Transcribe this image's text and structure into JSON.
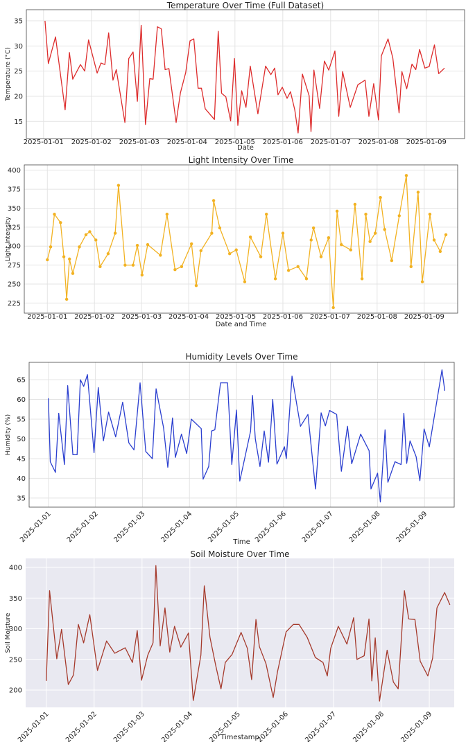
{
  "chart_data": [
    {
      "type": "line",
      "title": "Temperature Over Time (Full Dataset)",
      "xlabel": "Date",
      "ylabel": "Temperature (°C)",
      "color": "#dd2c2c",
      "grid": true,
      "marker": false,
      "x": [
        0.03,
        0.1,
        0.25,
        0.45,
        0.54,
        0.61,
        0.77,
        0.86,
        0.94,
        1.12,
        1.2,
        1.28,
        1.36,
        1.45,
        1.52,
        1.7,
        1.78,
        1.87,
        1.96,
        2.04,
        2.13,
        2.22,
        2.29,
        2.38,
        2.46,
        2.54,
        2.62,
        2.77,
        2.86,
        2.97,
        3.06,
        3.14,
        3.23,
        3.3,
        3.38,
        3.57,
        3.65,
        3.72,
        3.81,
        3.91,
        3.99,
        4.06,
        4.14,
        4.23,
        4.32,
        4.48,
        4.64,
        4.75,
        4.83,
        4.9,
        4.99,
        5.09,
        5.16,
        5.25,
        5.32,
        5.41,
        5.55,
        5.59,
        5.65,
        5.77,
        5.87,
        5.96,
        6.09,
        6.17,
        6.25,
        6.41,
        6.57,
        6.72,
        6.8,
        6.9,
        7.0,
        7.06,
        7.2,
        7.3,
        7.43,
        7.49,
        7.59,
        7.7,
        7.78,
        7.86,
        7.97,
        8.06,
        8.17,
        8.26,
        8.38
      ],
      "values": [
        35,
        26.5,
        31.8,
        17.3,
        28.7,
        23.4,
        26.3,
        25,
        31.2,
        24.6,
        26.6,
        26.3,
        32.6,
        23.2,
        25.3,
        14.8,
        27.5,
        28.8,
        19,
        34.1,
        14.4,
        23.5,
        23.4,
        33.8,
        33.4,
        25.3,
        25.5,
        14.8,
        20.7,
        24.7,
        31,
        31.4,
        21.6,
        21.6,
        17.5,
        15.4,
        32.9,
        20.6,
        19.9,
        15.1,
        27.5,
        14.2,
        21.1,
        17.8,
        26,
        16.5,
        26,
        24.3,
        25.6,
        20.3,
        21.8,
        19.6,
        20.9,
        17.3,
        12.7,
        24.4,
        20.1,
        13,
        25.2,
        17.6,
        27,
        25.2,
        29,
        16,
        24.9,
        17.8,
        22.3,
        23.2,
        16,
        22.5,
        15.3,
        28,
        31.4,
        27.6,
        16.7,
        24.9,
        21.5,
        26.4,
        25.3,
        29.3,
        25.6,
        25.9,
        30.2,
        24.5,
        25.6
      ],
      "xlim": [
        -0.36,
        8.8
      ],
      "ylim": [
        11.6,
        37.2
      ],
      "yticks": [
        15,
        20,
        25,
        30,
        35
      ],
      "xticks": [
        {
          "value": 0,
          "label": "2025-01-01"
        },
        {
          "value": 1,
          "label": "2025-01-02"
        },
        {
          "value": 2,
          "label": "2025-01-03"
        },
        {
          "value": 3,
          "label": "2025-01-04"
        },
        {
          "value": 4,
          "label": "2025-01-05"
        },
        {
          "value": 5,
          "label": "2025-01-06"
        },
        {
          "value": 6,
          "label": "2025-01-07"
        },
        {
          "value": 7,
          "label": "2025-01-08"
        },
        {
          "value": 8,
          "label": "2025-01-09"
        }
      ]
    },
    {
      "type": "line",
      "title": "Light Intensity Over Time",
      "xlabel": "Date and Time",
      "ylabel": "Light Intensity",
      "color": "#f2b222",
      "grid": true,
      "marker": true,
      "x": [
        0,
        0.07,
        0.15,
        0.28,
        0.35,
        0.41,
        0.47,
        0.54,
        0.68,
        0.82,
        0.9,
        1.03,
        1.12,
        1.29,
        1.44,
        1.51,
        1.65,
        1.82,
        1.91,
        2.01,
        2.13,
        2.4,
        2.54,
        2.71,
        2.85,
        3.06,
        3.16,
        3.26,
        3.49,
        3.53,
        3.66,
        3.87,
        4.01,
        4.19,
        4.31,
        4.53,
        4.65,
        4.84,
        5.0,
        5.12,
        5.32,
        5.5,
        5.6,
        5.65,
        5.81,
        5.97,
        6.07,
        6.15,
        6.24,
        6.44,
        6.53,
        6.68,
        6.76,
        6.85,
        6.96,
        7.07,
        7.16,
        7.31,
        7.47,
        7.62,
        7.72,
        7.87,
        7.96,
        8.12,
        8.21,
        8.34,
        8.46
      ],
      "values": [
        282,
        299,
        342,
        331,
        286,
        230,
        283,
        264,
        299,
        315,
        319,
        308,
        273,
        290,
        317,
        380,
        275,
        275,
        301,
        262,
        302,
        288,
        342,
        269,
        273,
        303,
        248,
        294,
        317,
        360,
        324,
        290,
        295,
        253,
        312,
        286,
        342,
        257,
        317,
        268,
        273,
        257,
        308,
        324,
        286,
        311,
        219,
        346,
        302,
        295,
        355,
        257,
        342,
        306,
        317,
        364,
        322,
        281,
        340,
        393,
        273,
        371,
        253,
        342,
        308,
        293,
        315
      ],
      "xlim": [
        -0.49,
        8.71
      ],
      "ylim": [
        211.7,
        407
      ],
      "yticks": [
        225,
        250,
        275,
        300,
        325,
        350,
        375,
        400
      ],
      "xticks": [
        {
          "value": 0,
          "label": "2025-01-01"
        },
        {
          "value": 1,
          "label": "2025-01-02"
        },
        {
          "value": 2,
          "label": "2025-01-03"
        },
        {
          "value": 3,
          "label": "2025-01-04"
        },
        {
          "value": 4,
          "label": "2025-01-05"
        },
        {
          "value": 5,
          "label": "2025-01-06"
        },
        {
          "value": 6,
          "label": "2025-01-07"
        },
        {
          "value": 7,
          "label": "2025-01-08"
        },
        {
          "value": 8,
          "label": "2025-01-09"
        }
      ]
    },
    {
      "type": "line",
      "title": "Humidity Levels Over Time",
      "xlabel": "Time",
      "ylabel": "Humidity (%)",
      "color": "#2b3fcf",
      "grid": true,
      "marker": false,
      "x": [
        0,
        0.04,
        0.15,
        0.22,
        0.34,
        0.41,
        0.52,
        0.61,
        0.68,
        0.75,
        0.83,
        0.97,
        1.06,
        1.17,
        1.28,
        1.43,
        1.58,
        1.71,
        1.82,
        1.95,
        2.07,
        2.21,
        2.29,
        2.45,
        2.54,
        2.64,
        2.7,
        2.83,
        2.94,
        3.04,
        3.25,
        3.29,
        3.41,
        3.47,
        3.54,
        3.66,
        3.81,
        3.9,
        4.0,
        4.07,
        4.3,
        4.34,
        4.4,
        4.5,
        4.59,
        4.68,
        4.77,
        4.86,
        5.02,
        5.06,
        5.18,
        5.36,
        5.52,
        5.68,
        5.8,
        5.89,
        5.98,
        6.13,
        6.23,
        6.36,
        6.45,
        6.64,
        6.82,
        6.86,
        7.0,
        7.06,
        7.16,
        7.22,
        7.37,
        7.5,
        7.56,
        7.62,
        7.69,
        7.82,
        7.9,
        7.99,
        8.1,
        8.37,
        8.43
      ],
      "values": [
        60.3,
        44.2,
        41.5,
        56.5,
        43.5,
        63.5,
        46,
        46,
        65,
        63.3,
        66.3,
        46.5,
        63,
        49.5,
        56.8,
        50.5,
        59.3,
        49,
        47.2,
        64.2,
        46.8,
        45,
        62.7,
        52.8,
        42.8,
        55.3,
        45.3,
        51.2,
        46.3,
        55,
        52.6,
        39.8,
        43,
        52,
        52.3,
        64.2,
        64.2,
        43.5,
        57.3,
        39.3,
        52,
        61,
        50,
        43,
        52,
        44.1,
        60,
        43.6,
        48,
        45,
        65.9,
        53.2,
        56.2,
        37.3,
        56.6,
        53.3,
        57.2,
        56.2,
        41.8,
        53.2,
        43.7,
        51.2,
        47,
        37.3,
        41.3,
        34,
        52.3,
        39,
        44.2,
        43.5,
        56.5,
        43.8,
        49.5,
        45.5,
        39.4,
        52.5,
        48,
        67.5,
        62.2
      ],
      "xlim": [
        -0.41,
        8.63
      ],
      "ylim": [
        32.7,
        69.4
      ],
      "yticks": [
        35,
        40,
        45,
        50,
        55,
        60,
        65
      ],
      "xticks": [
        {
          "value": 0,
          "label": "2025-01-01"
        },
        {
          "value": 1,
          "label": "2025-01-02"
        },
        {
          "value": 2,
          "label": "2025-01-03"
        },
        {
          "value": 3,
          "label": "2025-01-04"
        },
        {
          "value": 4,
          "label": "2025-01-05"
        },
        {
          "value": 5,
          "label": "2025-01-06"
        },
        {
          "value": 6,
          "label": "2025-01-07"
        },
        {
          "value": 7,
          "label": "2025-01-08"
        },
        {
          "value": 8,
          "label": "2025-01-09"
        }
      ]
    },
    {
      "type": "line",
      "title": "Soil Moisture Over Time",
      "xlabel": "Timestamp",
      "ylabel": "Soil Moisture",
      "color": "#a53a2c",
      "grid": true,
      "marker": false,
      "background": "#e9e9f1",
      "x": [
        0,
        0.07,
        0.22,
        0.32,
        0.46,
        0.57,
        0.67,
        0.78,
        0.91,
        1.07,
        1.26,
        1.43,
        1.65,
        1.8,
        1.9,
        1.99,
        2.12,
        2.23,
        2.29,
        2.38,
        2.48,
        2.58,
        2.68,
        2.81,
        2.97,
        3.07,
        3.23,
        3.3,
        3.42,
        3.54,
        3.65,
        3.74,
        3.88,
        4.07,
        4.2,
        4.29,
        4.38,
        4.45,
        4.59,
        4.74,
        4.83,
        5.01,
        5.16,
        5.28,
        5.45,
        5.62,
        5.78,
        5.87,
        5.94,
        6.1,
        6.28,
        6.42,
        6.49,
        6.64,
        6.74,
        6.8,
        6.87,
        6.96,
        7.12,
        7.25,
        7.35,
        7.48,
        7.57,
        7.7,
        7.81,
        7.97,
        8.07,
        8.16,
        8.32,
        8.43
      ],
      "values": [
        215,
        362,
        251,
        299,
        209,
        225,
        307,
        277,
        323,
        232,
        280,
        260,
        269,
        245,
        297,
        216,
        257,
        277,
        403,
        272,
        334,
        262,
        304,
        270,
        293,
        183,
        257,
        370,
        286,
        240,
        202,
        245,
        258,
        294,
        268,
        217,
        315,
        271,
        243,
        188,
        230,
        295,
        307,
        307,
        286,
        253,
        245,
        223,
        268,
        304,
        275,
        318,
        250,
        256,
        316,
        215,
        285,
        182,
        265,
        213,
        202,
        362,
        316,
        315,
        247,
        223,
        252,
        334,
        359,
        339
      ],
      "xlim": [
        -0.43,
        8.52
      ],
      "ylim": [
        171.8,
        414.7
      ],
      "yticks": [
        200,
        250,
        300,
        350,
        400
      ],
      "xticks": [
        {
          "value": 0,
          "label": "2025-01-01"
        },
        {
          "value": 1,
          "label": "2025-01-02"
        },
        {
          "value": 2,
          "label": "2025-01-03"
        },
        {
          "value": 3,
          "label": "2025-01-04"
        },
        {
          "value": 4,
          "label": "2025-01-05"
        },
        {
          "value": 5,
          "label": "2025-01-06"
        },
        {
          "value": 6,
          "label": "2025-01-07"
        },
        {
          "value": 7,
          "label": "2025-01-08"
        },
        {
          "value": 8,
          "label": "2025-01-09"
        }
      ]
    }
  ]
}
